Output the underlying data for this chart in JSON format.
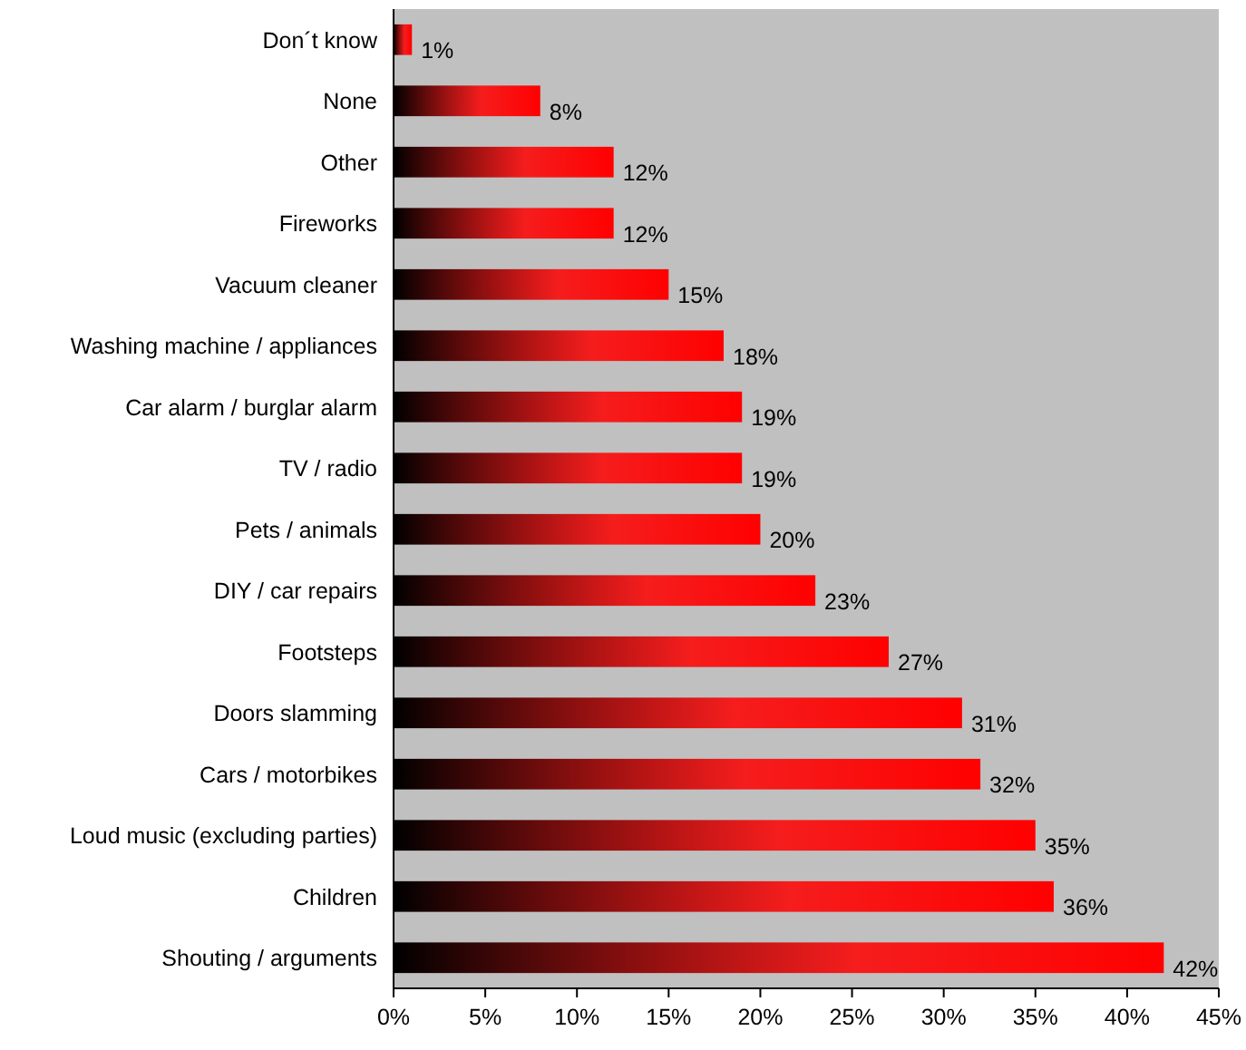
{
  "chart_data": {
    "type": "bar",
    "orientation": "horizontal",
    "categories": [
      "Don´t know",
      "None",
      "Other",
      "Fireworks",
      "Vacuum cleaner",
      "Washing machine / appliances",
      "Car alarm / burglar alarm",
      "TV / radio",
      "Pets / animals",
      "DIY / car repairs",
      "Footsteps",
      "Doors slamming",
      "Cars / motorbikes",
      "Loud music (excluding parties)",
      "Children",
      "Shouting / arguments"
    ],
    "values": [
      1,
      8,
      12,
      12,
      15,
      18,
      19,
      19,
      20,
      23,
      27,
      31,
      32,
      35,
      36,
      42
    ],
    "color": "#ff0000",
    "value_labels": [
      "1%",
      "8%",
      "12%",
      "12%",
      "15%",
      "18%",
      "19%",
      "19%",
      "20%",
      "23%",
      "27%",
      "31%",
      "32%",
      "35%",
      "36%",
      "42%"
    ],
    "xlim": [
      0,
      45
    ],
    "xticks": [
      {
        "value": 0,
        "label": "0%"
      },
      {
        "value": 5,
        "label": "5%"
      },
      {
        "value": 10,
        "label": "10%"
      },
      {
        "value": 15,
        "label": "15%"
      },
      {
        "value": 20,
        "label": "20%"
      },
      {
        "value": 25,
        "label": "25%"
      },
      {
        "value": 30,
        "label": "30%"
      },
      {
        "value": 35,
        "label": "35%"
      },
      {
        "value": 40,
        "label": "40%"
      },
      {
        "value": 45,
        "label": "45%"
      }
    ],
    "grid": false
  }
}
